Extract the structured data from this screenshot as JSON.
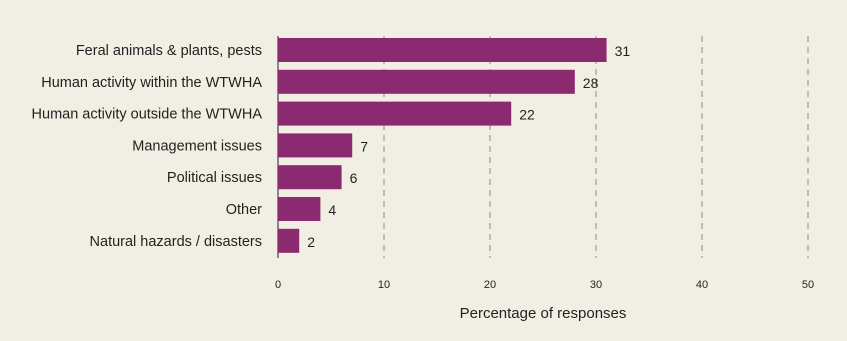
{
  "chart_data": {
    "type": "bar",
    "orientation": "horizontal",
    "categories": [
      "Feral animals & plants, pests",
      "Human activity within the WTWHA",
      "Human activity outside the WTWHA",
      "Management issues",
      "Political issues",
      "Other",
      "Natural hazards / disasters"
    ],
    "values": [
      31,
      28,
      22,
      7,
      6,
      4,
      2
    ],
    "value_labels": [
      "31",
      "28",
      "22",
      "7",
      "6",
      "4",
      "2"
    ],
    "xlabel": "Percentage of responses",
    "ylabel": "",
    "xlim": [
      0,
      50
    ],
    "xticks": [
      0,
      10,
      20,
      30,
      40,
      50
    ],
    "xtick_labels": [
      "0",
      "10",
      "20",
      "30",
      "40",
      "50"
    ],
    "grid": "vertical dashed",
    "colors": {
      "bar": "#8b2a6e",
      "background": "#f1eee3",
      "text": "#231f20"
    }
  }
}
